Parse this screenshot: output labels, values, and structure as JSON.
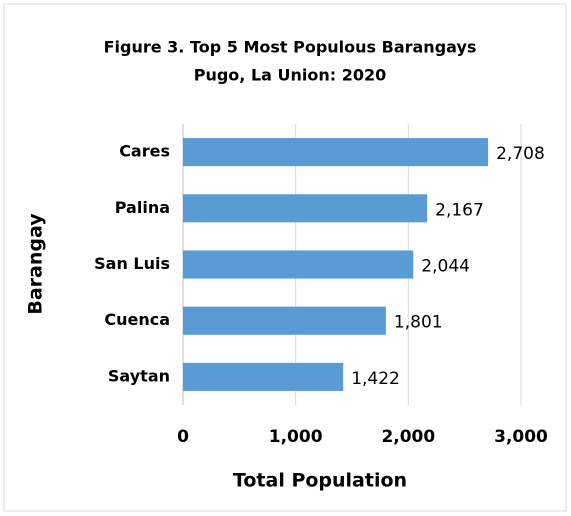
{
  "chart_data": {
    "type": "barh",
    "title": "Figure 3. Top 5 Most Populous Barangays",
    "subtitle": "Pugo, La Union: 2020",
    "x_label": "Total Population",
    "y_label": "Barangay",
    "categories": [
      "Cares",
      "Palina",
      "San Luis",
      "Cuenca",
      "Saytan"
    ],
    "values": [
      2708,
      2167,
      2044,
      1801,
      1422
    ],
    "value_labels": [
      "2,708",
      "2,167",
      "2,044",
      "1,801",
      "1,422"
    ],
    "color": "#5b9bd5",
    "xlim": [
      0,
      3000
    ],
    "xticks": [
      0,
      {
        "value": 1000,
        "label": "1,000"
      },
      {
        "value": 2000,
        "label": "2,000"
      },
      {
        "value": 3000,
        "label": "3,000"
      }
    ],
    "grid": true
  }
}
